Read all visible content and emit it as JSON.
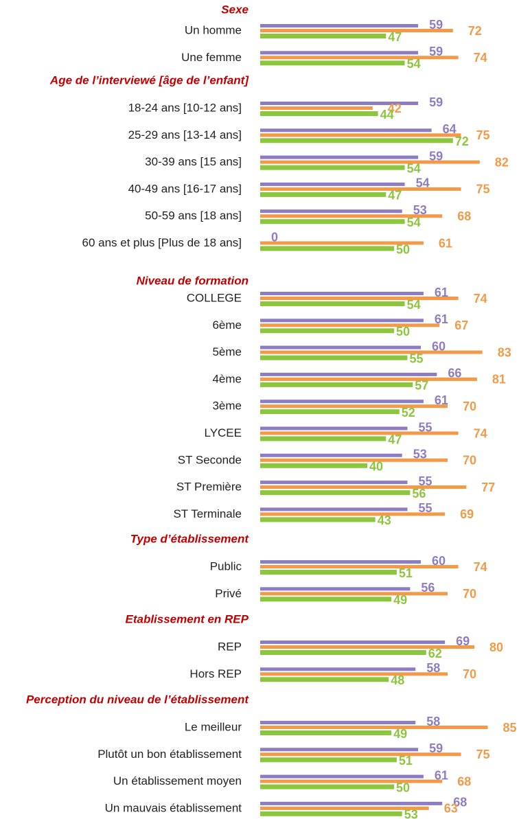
{
  "chart_data": {
    "type": "bar",
    "orientation": "horizontal",
    "sections": [
      {
        "title": "Sexe",
        "categories": [
          "Un homme",
          "Une femme"
        ]
      },
      {
        "title": "Age de l’interviewé [âge de l’enfant]",
        "categories": [
          "18-24 ans [10-12 ans]",
          "25-29 ans [13-14 ans]",
          "30-39 ans [15 ans]",
          "40-49 ans [16-17 ans]",
          "50-59 ans [18 ans]",
          "60 ans et plus [Plus de 18 ans]"
        ]
      },
      {
        "title": "Niveau de formation",
        "categories": [
          "COLLEGE",
          "6ème",
          "5ème",
          "4ème",
          "3ème",
          "LYCEE",
          "ST Seconde",
          "ST Première",
          "ST Terminale"
        ]
      },
      {
        "title": "Type d’établissement",
        "categories": [
          "Public",
          "Privé"
        ]
      },
      {
        "title": "Etablissement en REP",
        "categories": [
          "REP",
          "Hors REP"
        ]
      },
      {
        "title": "Perception du niveau de l’établissement",
        "categories": [
          "Le meilleur",
          "Plutôt un bon établissement",
          "Un établissement moyen",
          "Un mauvais établissement"
        ]
      }
    ],
    "series": [
      {
        "color": "#8e7cc3",
        "values": [
          59,
          59,
          59,
          64,
          59,
          54,
          53,
          0,
          61,
          61,
          60,
          66,
          61,
          55,
          53,
          55,
          55,
          60,
          56,
          69,
          58,
          58,
          59,
          61,
          68
        ]
      },
      {
        "color": "#f39a48",
        "values": [
          72,
          74,
          42,
          75,
          82,
          75,
          68,
          61,
          74,
          67,
          83,
          81,
          70,
          74,
          70,
          77,
          69,
          74,
          70,
          80,
          70,
          85,
          75,
          68,
          63
        ]
      },
      {
        "color": "#8cc63f",
        "values": [
          47,
          54,
          44,
          72,
          54,
          47,
          54,
          50,
          54,
          50,
          55,
          57,
          52,
          47,
          40,
          56,
          43,
          51,
          49,
          62,
          48,
          49,
          51,
          50,
          53
        ]
      }
    ]
  }
}
